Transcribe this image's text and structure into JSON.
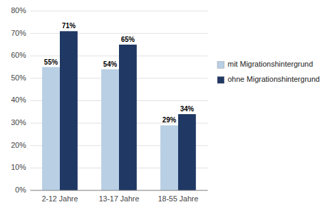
{
  "chart_data": {
    "type": "bar",
    "categories": [
      "2-12 Jahre",
      "13-17 Jahre",
      "18-55 Jahre"
    ],
    "series": [
      {
        "name": "mit Migrationshintergrund",
        "color": "#b8cfe4",
        "values": [
          55,
          54,
          29
        ],
        "value_labels": [
          "55%",
          "54%",
          "29%"
        ]
      },
      {
        "name": "ohne Migrationshintergrund",
        "color": "#1f3864",
        "values": [
          71,
          65,
          34
        ],
        "value_labels": [
          "71%",
          "65%",
          "34%"
        ]
      }
    ],
    "ylim": [
      0,
      80
    ],
    "yticks": [
      {
        "value": 0,
        "label": "0%"
      },
      {
        "value": 10,
        "label": "10%"
      },
      {
        "value": 20,
        "label": "20%"
      },
      {
        "value": 30,
        "label": "30%"
      },
      {
        "value": 40,
        "label": "40%"
      },
      {
        "value": 50,
        "label": "50%"
      },
      {
        "value": 60,
        "label": "60%"
      },
      {
        "value": 70,
        "label": "70%"
      },
      {
        "value": 80,
        "label": "80%"
      }
    ],
    "grid": true,
    "data_labels": true,
    "legend": "right"
  }
}
